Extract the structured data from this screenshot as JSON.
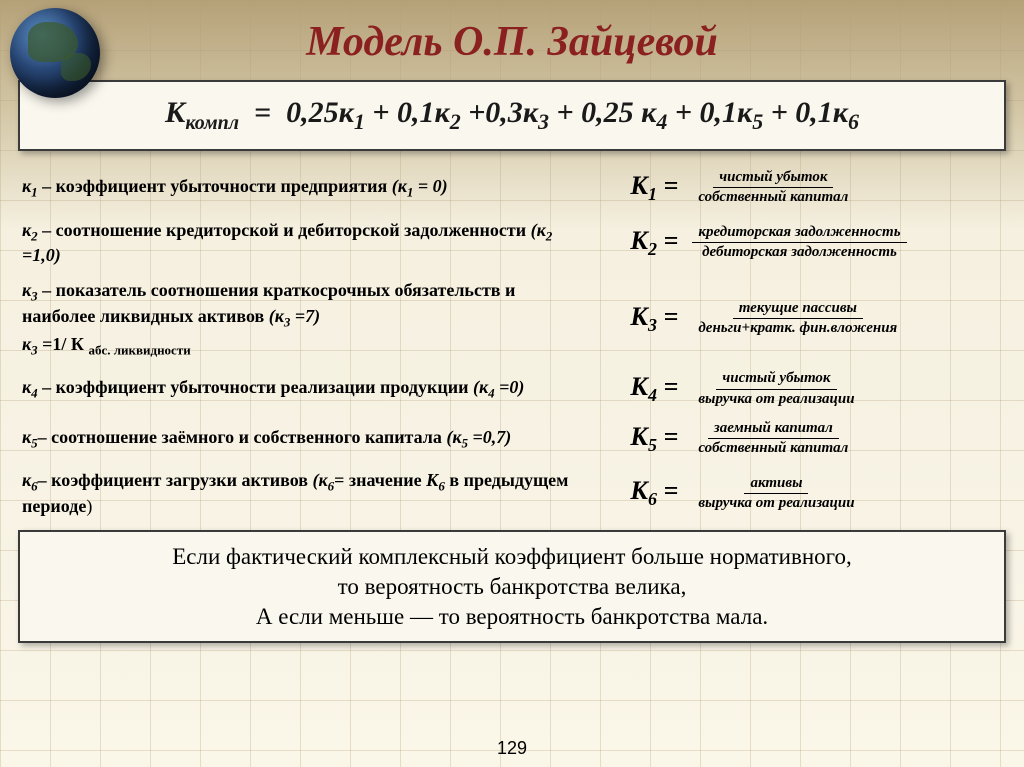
{
  "title": "Модель О.П. Зайцевой",
  "formula": {
    "lhs_k": "К",
    "lhs_sub": "компл",
    "terms": [
      {
        "coef": "0,25",
        "sub": "1"
      },
      {
        "coef": "0,1",
        "sub": "2"
      },
      {
        "coef": "0,3",
        "sub": "3"
      },
      {
        "coef": "0,25 ",
        "sub": "4"
      },
      {
        "coef": "0,1",
        "sub": "5"
      },
      {
        "coef": "0,1",
        "sub": "6"
      }
    ]
  },
  "coeffs": [
    {
      "label_html": "<span class='ki'>к<span class='sub2'>1</span></span> – коэффициент убыточности предприятия <span class='ki'>(к<span class='sub2'>1</span> = 0)</span>",
      "k": "К",
      "ksub": "1",
      "num": "чистый убыток",
      "den": "собственный капитал"
    },
    {
      "label_html": "<span class='ki'>к<span class='sub2'>2</span></span> – соотношение кредиторской и дебиторской задолженности <span class='ki'>(к<span class='sub2'>2</span> =1,0)</span>",
      "k": "К",
      "ksub": "2",
      "num": "кредиторская задолженность",
      "den": "дебиторская задолженность"
    },
    {
      "label_html": "<span class='ki'>к<span class='sub2'>3</span></span> – показатель соотношения краткосрочных обязательств и наиболее ликвидных активов <span class='ki'>(к<span class='sub2'>3</span> =7)</span>",
      "extra_html": "<span class='ki'>к<span class='sub2'>3</span></span> =1/ К <span class='sub2'>абс. ликвидности</span>",
      "k": "К",
      "ksub": "3",
      "num": "текущие пассивы",
      "den": "деньги+кратк. фин.вложения"
    },
    {
      "label_html": "<span class='ki'>к<span class='sub2'>4</span></span> – коэффициент убыточности реализации продукции <span class='ki'>(к<span class='sub2'>4</span> =0)</span>",
      "k": "К",
      "ksub": "4",
      "num": "чистый убыток",
      "den": "выручка от реализации"
    },
    {
      "label_html": "<span class='ki'>к<span class='sub2'>5</span></span>– соотношение заёмного и собственного капитала <span class='ki'>(к<span class='sub2'>5</span> =0,7)</span>",
      "k": "К",
      "ksub": "5",
      "num": "заемный капитал",
      "den": "собственный капитал"
    },
    {
      "label_html": "<span class='ki'>к<span class='sub2'>6</span></span>– коэффициент загрузки активов <span class='ki'>(к<span class='sub2'>6</span></span>= значение <span class='ki'>К<span class='sub2'>6</span></span> в предыдущем периоде<span class='norm'>)</span>",
      "k": "К",
      "ksub": "6",
      "num": "активы",
      "den": "выручка от реализации"
    }
  ],
  "conclusion_l1": "Если фактический комплексный коэффициент больше нормативного,",
  "conclusion_l2": "то вероятность банкротства велика,",
  "conclusion_l3": "А если меньше — то вероятность банкротства мала.",
  "page_number": "129",
  "colors": {
    "title": "#8b2020",
    "box_bg": "#faf8ee",
    "box_border": "#3a3a3a",
    "text": "#000000"
  }
}
